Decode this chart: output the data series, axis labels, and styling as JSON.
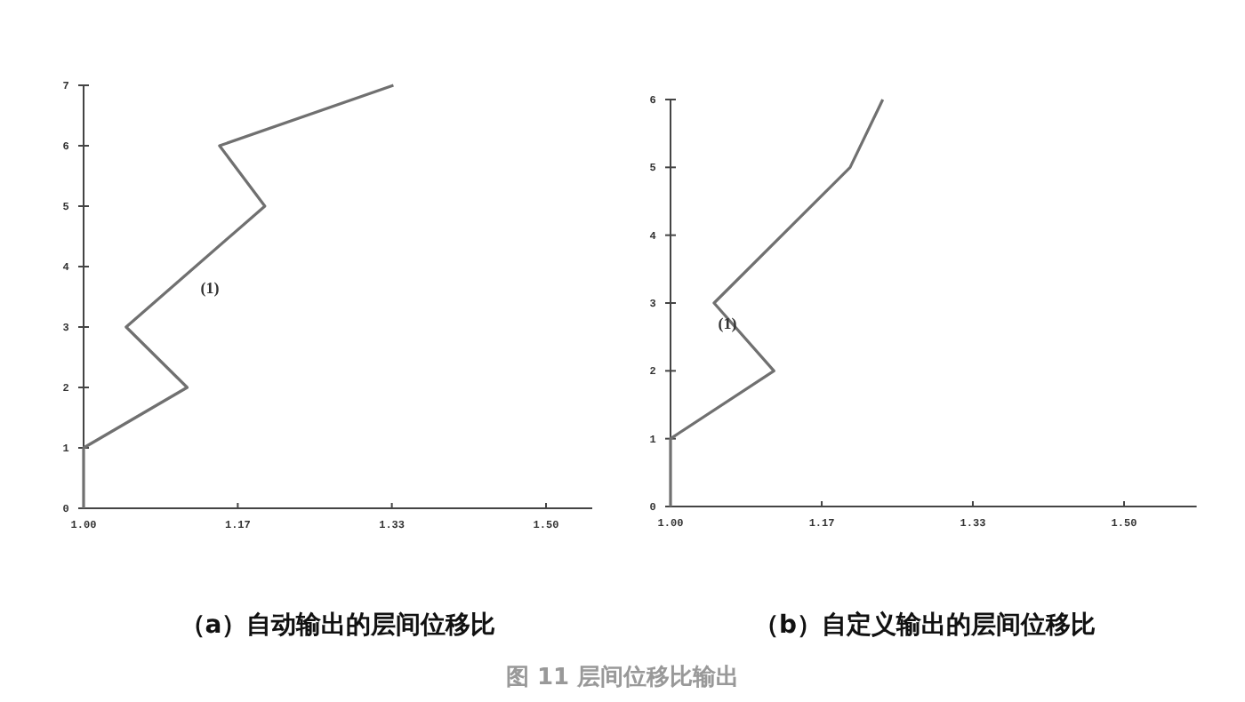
{
  "chart_data": [
    {
      "type": "line",
      "title": "（a）自动输出的层间位移比",
      "x": [
        1.0,
        1.0,
        1.112,
        1.046,
        1.196,
        1.147,
        1.335
      ],
      "values": [
        0,
        1,
        2,
        3,
        5,
        6,
        7
      ],
      "color": "#707070",
      "xlim": [
        1.0,
        1.55
      ],
      "ylim": [
        0,
        7
      ],
      "xticks": [
        {
          "value": 1.0,
          "label": "1.00"
        },
        {
          "value": 1.1667,
          "label": "1.17"
        },
        {
          "value": 1.3333,
          "label": "1.33"
        },
        {
          "value": 1.5,
          "label": "1.50"
        }
      ],
      "yticks": [
        0,
        1,
        2,
        3,
        4,
        5,
        6,
        7
      ],
      "grid": false,
      "marker": "none",
      "annotations": [
        "(1)",
        "图 11 层间位移比输出"
      ]
    },
    {
      "type": "line",
      "title": "（b）自定义输出的层间位移比",
      "x": [
        1.0,
        1.0,
        1.114,
        1.048,
        1.198,
        1.234
      ],
      "values": [
        0,
        1,
        2,
        3,
        5,
        6
      ],
      "color": "#707070",
      "xlim": [
        1.0,
        1.58
      ],
      "ylim": [
        0,
        6
      ],
      "xticks": [
        {
          "value": 1.0,
          "label": "1.00"
        },
        {
          "value": 1.1667,
          "label": "1.17"
        },
        {
          "value": 1.3333,
          "label": "1.33"
        },
        {
          "value": 1.5,
          "label": "1.50"
        }
      ],
      "yticks": [
        0,
        1,
        2,
        3,
        4,
        5,
        6
      ],
      "grid": false,
      "marker": "none",
      "annotations": [
        "(1)"
      ]
    }
  ]
}
